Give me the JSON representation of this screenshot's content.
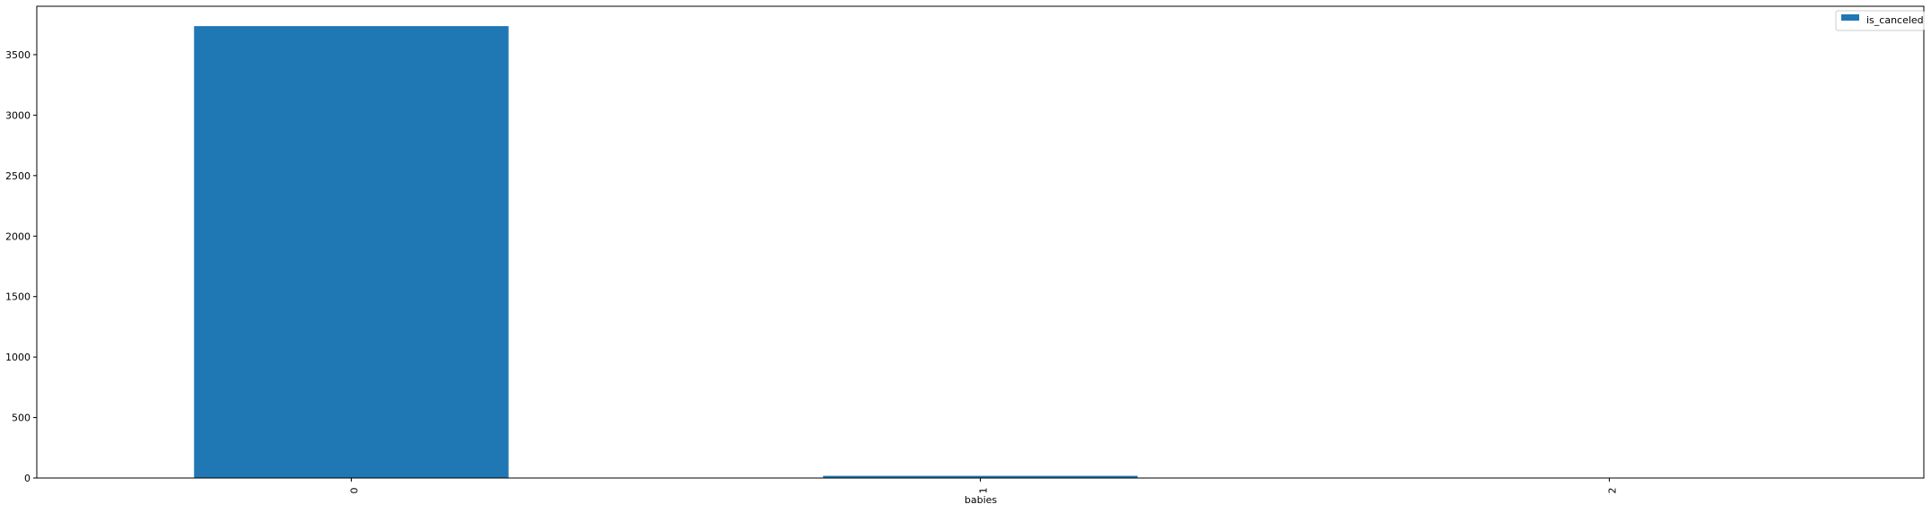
{
  "chart_data": {
    "type": "bar",
    "categories": [
      "0",
      "1",
      "2"
    ],
    "series": [
      {
        "name": "is_canceled",
        "values": [
          3736,
          18,
          1
        ]
      }
    ],
    "xlabel": "babies",
    "ylabel": "",
    "ylim": [
      0,
      3900
    ],
    "yticks": [
      0,
      500,
      1000,
      1500,
      2000,
      2500,
      3000,
      3500
    ],
    "legend": {
      "placement": "top-right",
      "entries": [
        "is_canceled"
      ]
    },
    "grid": false,
    "colors": {
      "bar": "#1f77b4",
      "axis": "#000000",
      "background": "#ffffff",
      "legend_border": "#cccccc"
    }
  }
}
